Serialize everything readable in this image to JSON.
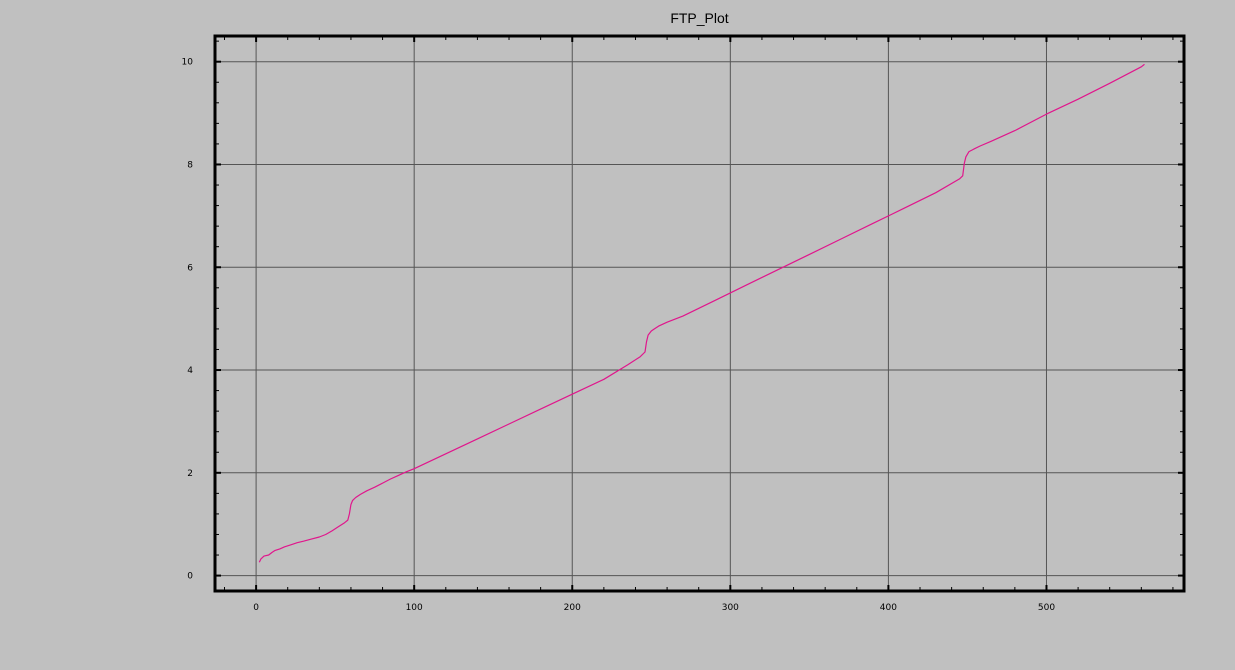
{
  "chart_data": {
    "type": "line",
    "title": "FTP_Plot",
    "xlabel": "",
    "ylabel": "",
    "xlim": [
      -26,
      587
    ],
    "ylim": [
      -0.3,
      10.5
    ],
    "xticks": [
      0,
      100,
      200,
      300,
      400,
      500
    ],
    "yticks": [
      0,
      2,
      4,
      6,
      8,
      10
    ],
    "grid": true,
    "legend": "none",
    "colors": {
      "background": "#c0c0c0",
      "grid": "#555555",
      "frame": "#000000",
      "series": "#e0168c"
    },
    "series": [
      {
        "values": [
          [
            2,
            0.26
          ],
          [
            3,
            0.32
          ],
          [
            5,
            0.38
          ],
          [
            8,
            0.4
          ],
          [
            10,
            0.45
          ],
          [
            12,
            0.49
          ],
          [
            15,
            0.52
          ],
          [
            18,
            0.56
          ],
          [
            22,
            0.6
          ],
          [
            26,
            0.64
          ],
          [
            30,
            0.67
          ],
          [
            35,
            0.71
          ],
          [
            40,
            0.75
          ],
          [
            44,
            0.8
          ],
          [
            48,
            0.87
          ],
          [
            52,
            0.95
          ],
          [
            56,
            1.03
          ],
          [
            58,
            1.08
          ],
          [
            59,
            1.2
          ],
          [
            60,
            1.38
          ],
          [
            61,
            1.46
          ],
          [
            63,
            1.52
          ],
          [
            66,
            1.58
          ],
          [
            70,
            1.65
          ],
          [
            75,
            1.72
          ],
          [
            80,
            1.8
          ],
          [
            85,
            1.88
          ],
          [
            90,
            1.95
          ],
          [
            95,
            2.02
          ],
          [
            100,
            2.08
          ],
          [
            120,
            2.37
          ],
          [
            140,
            2.66
          ],
          [
            160,
            2.95
          ],
          [
            180,
            3.24
          ],
          [
            200,
            3.53
          ],
          [
            220,
            3.82
          ],
          [
            235,
            4.1
          ],
          [
            243,
            4.26
          ],
          [
            246,
            4.35
          ],
          [
            247,
            4.55
          ],
          [
            248,
            4.68
          ],
          [
            250,
            4.76
          ],
          [
            252,
            4.8
          ],
          [
            255,
            4.86
          ],
          [
            260,
            4.93
          ],
          [
            270,
            5.05
          ],
          [
            290,
            5.35
          ],
          [
            310,
            5.65
          ],
          [
            330,
            5.95
          ],
          [
            350,
            6.25
          ],
          [
            370,
            6.55
          ],
          [
            390,
            6.85
          ],
          [
            410,
            7.15
          ],
          [
            430,
            7.45
          ],
          [
            445,
            7.72
          ],
          [
            447,
            7.78
          ],
          [
            448,
            8.02
          ],
          [
            449,
            8.15
          ],
          [
            451,
            8.25
          ],
          [
            454,
            8.3
          ],
          [
            458,
            8.36
          ],
          [
            465,
            8.45
          ],
          [
            480,
            8.66
          ],
          [
            500,
            8.98
          ],
          [
            520,
            9.27
          ],
          [
            540,
            9.58
          ],
          [
            560,
            9.9
          ],
          [
            562,
            9.95
          ]
        ]
      }
    ]
  }
}
